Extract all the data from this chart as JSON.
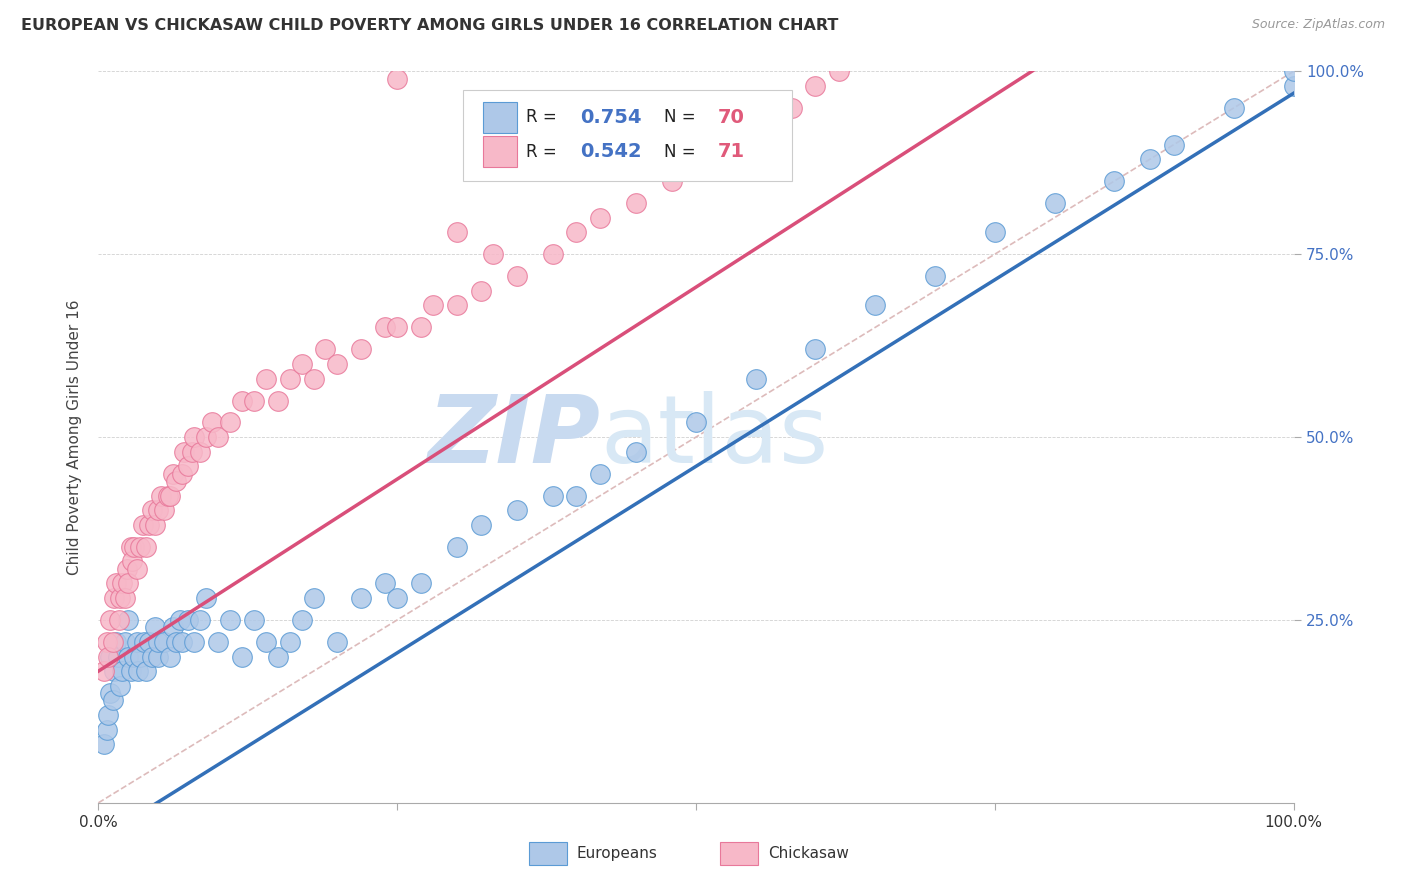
{
  "title": "EUROPEAN VS CHICKASAW CHILD POVERTY AMONG GIRLS UNDER 16 CORRELATION CHART",
  "source": "Source: ZipAtlas.com",
  "ylabel": "Child Poverty Among Girls Under 16",
  "watermark_zip": "ZIP",
  "watermark_atlas": "atlas",
  "blue_R": 0.754,
  "blue_N": 70,
  "pink_R": 0.542,
  "pink_N": 71,
  "blue_color": "#aec8e8",
  "blue_edge_color": "#5b9bd5",
  "pink_color": "#f7b8c8",
  "pink_edge_color": "#e8789a",
  "blue_line_color": "#3370b8",
  "pink_line_color": "#d94f7a",
  "diagonal_color": "#ddbbbb",
  "xlim": [
    0,
    1
  ],
  "ylim": [
    0,
    1
  ],
  "blue_line_intercept": -0.05,
  "blue_line_slope": 1.02,
  "pink_line_intercept": 0.18,
  "pink_line_slope": 1.05,
  "blue_scatter_x": [
    0.005,
    0.007,
    0.008,
    0.01,
    0.01,
    0.012,
    0.013,
    0.015,
    0.016,
    0.018,
    0.02,
    0.022,
    0.025,
    0.025,
    0.027,
    0.03,
    0.032,
    0.033,
    0.035,
    0.038,
    0.04,
    0.042,
    0.045,
    0.047,
    0.05,
    0.05,
    0.055,
    0.06,
    0.062,
    0.065,
    0.068,
    0.07,
    0.075,
    0.08,
    0.085,
    0.09,
    0.1,
    0.11,
    0.12,
    0.13,
    0.14,
    0.15,
    0.16,
    0.17,
    0.18,
    0.2,
    0.22,
    0.24,
    0.25,
    0.27,
    0.3,
    0.32,
    0.35,
    0.38,
    0.4,
    0.42,
    0.45,
    0.5,
    0.55,
    0.6,
    0.65,
    0.7,
    0.75,
    0.8,
    0.85,
    0.88,
    0.9,
    0.95,
    1.0,
    1.0
  ],
  "blue_scatter_y": [
    0.08,
    0.1,
    0.12,
    0.15,
    0.2,
    0.14,
    0.18,
    0.22,
    0.2,
    0.16,
    0.18,
    0.22,
    0.2,
    0.25,
    0.18,
    0.2,
    0.22,
    0.18,
    0.2,
    0.22,
    0.18,
    0.22,
    0.2,
    0.24,
    0.2,
    0.22,
    0.22,
    0.2,
    0.24,
    0.22,
    0.25,
    0.22,
    0.25,
    0.22,
    0.25,
    0.28,
    0.22,
    0.25,
    0.2,
    0.25,
    0.22,
    0.2,
    0.22,
    0.25,
    0.28,
    0.22,
    0.28,
    0.3,
    0.28,
    0.3,
    0.35,
    0.38,
    0.4,
    0.42,
    0.42,
    0.45,
    0.48,
    0.52,
    0.58,
    0.62,
    0.68,
    0.72,
    0.78,
    0.82,
    0.85,
    0.88,
    0.9,
    0.95,
    0.98,
    1.0
  ],
  "pink_scatter_x": [
    0.005,
    0.007,
    0.008,
    0.01,
    0.012,
    0.013,
    0.015,
    0.017,
    0.018,
    0.02,
    0.022,
    0.024,
    0.025,
    0.027,
    0.028,
    0.03,
    0.032,
    0.035,
    0.037,
    0.04,
    0.042,
    0.045,
    0.047,
    0.05,
    0.052,
    0.055,
    0.058,
    0.06,
    0.062,
    0.065,
    0.07,
    0.072,
    0.075,
    0.078,
    0.08,
    0.085,
    0.09,
    0.095,
    0.1,
    0.11,
    0.12,
    0.13,
    0.14,
    0.15,
    0.16,
    0.17,
    0.18,
    0.19,
    0.2,
    0.22,
    0.24,
    0.25,
    0.27,
    0.28,
    0.3,
    0.32,
    0.35,
    0.38,
    0.4,
    0.42,
    0.45,
    0.48,
    0.5,
    0.52,
    0.55,
    0.58,
    0.6,
    0.62,
    0.33,
    0.3,
    0.25
  ],
  "pink_scatter_y": [
    0.18,
    0.22,
    0.2,
    0.25,
    0.22,
    0.28,
    0.3,
    0.25,
    0.28,
    0.3,
    0.28,
    0.32,
    0.3,
    0.35,
    0.33,
    0.35,
    0.32,
    0.35,
    0.38,
    0.35,
    0.38,
    0.4,
    0.38,
    0.4,
    0.42,
    0.4,
    0.42,
    0.42,
    0.45,
    0.44,
    0.45,
    0.48,
    0.46,
    0.48,
    0.5,
    0.48,
    0.5,
    0.52,
    0.5,
    0.52,
    0.55,
    0.55,
    0.58,
    0.55,
    0.58,
    0.6,
    0.58,
    0.62,
    0.6,
    0.62,
    0.65,
    0.65,
    0.65,
    0.68,
    0.68,
    0.7,
    0.72,
    0.75,
    0.78,
    0.8,
    0.82,
    0.85,
    0.88,
    0.9,
    0.92,
    0.95,
    0.98,
    1.0,
    0.75,
    0.78,
    0.99
  ],
  "legend_label_blue": "Europeans",
  "legend_label_pink": "Chickasaw"
}
